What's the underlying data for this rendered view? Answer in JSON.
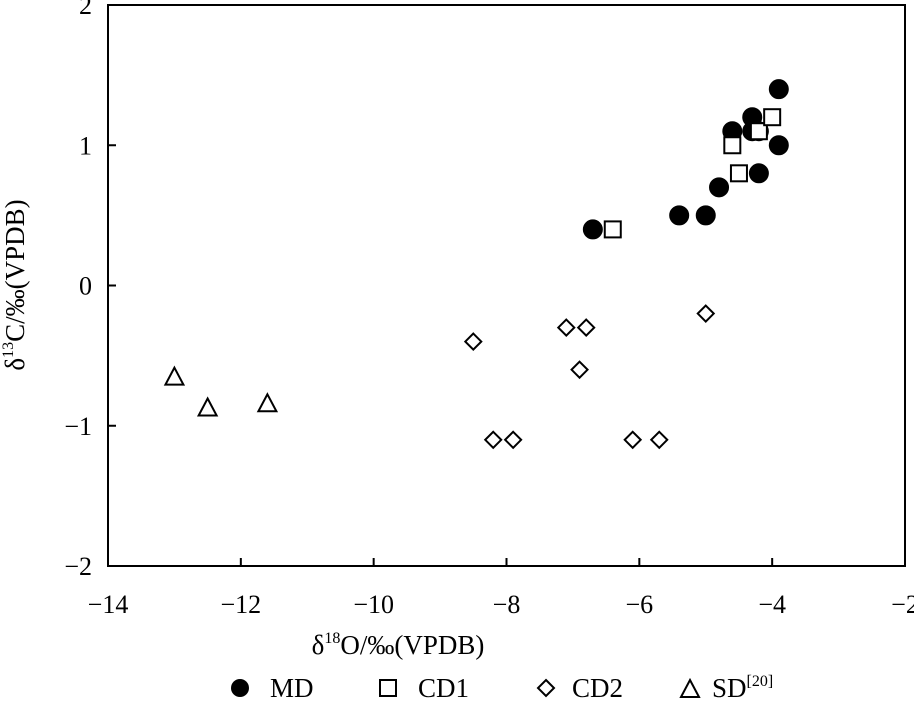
{
  "chart_data": {
    "type": "scatter",
    "title": "",
    "xlabel": {
      "base": "δ",
      "sup": "18",
      "rest": "O/‰(VPDB)"
    },
    "ylabel": {
      "base": "δ",
      "sup": "13",
      "rest": "C/‰(VPDB)"
    },
    "xlim": [
      -14,
      -2
    ],
    "ylim": [
      -2,
      2
    ],
    "xticks": [
      -14,
      -12,
      -10,
      -8,
      -6,
      -4,
      -2
    ],
    "xtick_labels": [
      "−14",
      "−12",
      "−10",
      "−8",
      "−6",
      "−4",
      "−2"
    ],
    "yticks": [
      -2,
      -1,
      0,
      1,
      2
    ],
    "ytick_labels": [
      "−2",
      "−1",
      "0",
      "1",
      "2"
    ],
    "grid": false,
    "legend_position": "bottom",
    "series": [
      {
        "name": "MD",
        "marker": "filled-circle",
        "color": "#000000",
        "points": [
          [
            -6.7,
            0.4
          ],
          [
            -5.4,
            0.5
          ],
          [
            -5.0,
            0.5
          ],
          [
            -4.8,
            0.7
          ],
          [
            -4.6,
            1.1
          ],
          [
            -4.3,
            1.2
          ],
          [
            -4.3,
            1.1
          ],
          [
            -4.2,
            1.1
          ],
          [
            -4.2,
            0.8
          ],
          [
            -3.9,
            1.4
          ],
          [
            -3.9,
            1.0
          ]
        ]
      },
      {
        "name": "CD1",
        "marker": "open-square",
        "color": "#000000",
        "points": [
          [
            -6.4,
            0.4
          ],
          [
            -4.6,
            1.0
          ],
          [
            -4.5,
            0.8
          ],
          [
            -4.2,
            1.1
          ],
          [
            -4.0,
            1.2
          ]
        ]
      },
      {
        "name": "CD2",
        "marker": "open-diamond",
        "color": "#000000",
        "points": [
          [
            -8.5,
            -0.4
          ],
          [
            -8.2,
            -1.1
          ],
          [
            -7.9,
            -1.1
          ],
          [
            -7.1,
            -0.3
          ],
          [
            -6.8,
            -0.3
          ],
          [
            -6.9,
            -0.6
          ],
          [
            -6.1,
            -1.1
          ],
          [
            -5.7,
            -1.1
          ],
          [
            -5.0,
            -0.2
          ]
        ]
      },
      {
        "name": "SD",
        "name_sup": "[20]",
        "marker": "open-triangle",
        "color": "#000000",
        "points": [
          [
            -13.0,
            -0.65
          ],
          [
            -12.5,
            -0.87
          ],
          [
            -11.6,
            -0.84
          ]
        ]
      }
    ]
  }
}
